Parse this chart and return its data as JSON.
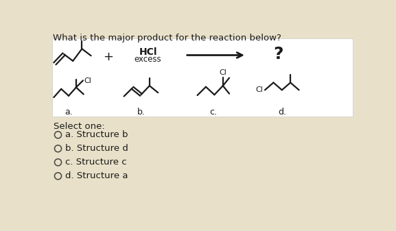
{
  "background_color": "#e8e0c8",
  "white_box_color": "#ffffff",
  "title": "What is the major product for the reaction below?",
  "title_fontsize": 9.5,
  "hcl_text": "HCl",
  "excess_text": "excess",
  "question_mark": "?",
  "select_one": "Select one:",
  "options": [
    "a. Structure b",
    "b. Structure d",
    "c. Structure c",
    "d. Structure a"
  ],
  "labels": [
    "a.",
    "b.",
    "c.",
    "d."
  ],
  "text_color": "#1a1a1a",
  "line_color": "#1a1a1a",
  "line_width": 1.6
}
